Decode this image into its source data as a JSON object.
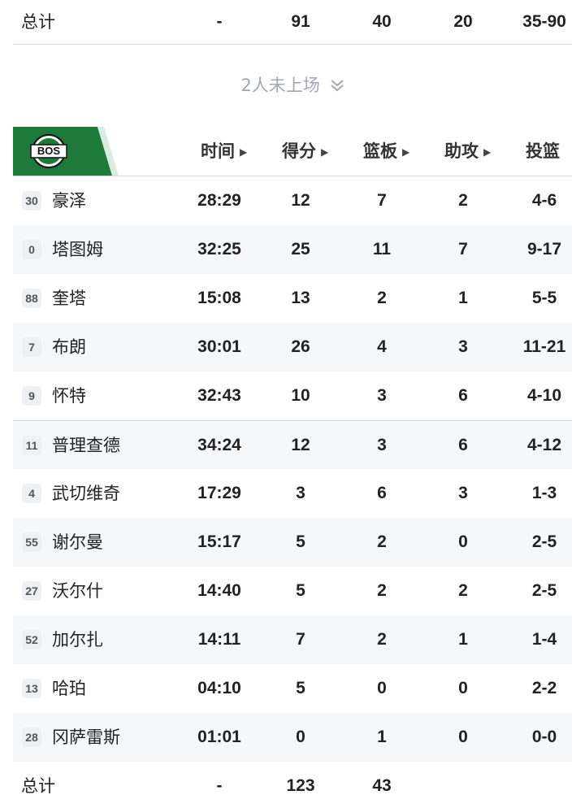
{
  "opponent_total": {
    "label": "总计",
    "time": "-",
    "points": "91",
    "rebounds": "40",
    "assists": "20",
    "fg": "35-90"
  },
  "dnp_notice": {
    "text": "2人未上场",
    "icon": "double-chevron-down-icon"
  },
  "team": {
    "abbr": "BOS",
    "brand_color": "#1d7a3a"
  },
  "columns": {
    "time": "时间",
    "points": "得分",
    "rebounds": "篮板",
    "assists": "助攻",
    "fg": "投篮"
  },
  "players": [
    {
      "number": "30",
      "name": "豪泽",
      "time": "28:29",
      "points": "12",
      "rebounds": "7",
      "assists": "2",
      "fg": "4-6"
    },
    {
      "number": "0",
      "name": "塔图姆",
      "time": "32:25",
      "points": "25",
      "rebounds": "11",
      "assists": "7",
      "fg": "9-17"
    },
    {
      "number": "88",
      "name": "奎塔",
      "time": "15:08",
      "points": "13",
      "rebounds": "2",
      "assists": "1",
      "fg": "5-5"
    },
    {
      "number": "7",
      "name": "布朗",
      "time": "30:01",
      "points": "26",
      "rebounds": "4",
      "assists": "3",
      "fg": "11-21"
    },
    {
      "number": "9",
      "name": "怀特",
      "time": "32:43",
      "points": "10",
      "rebounds": "3",
      "assists": "6",
      "fg": "4-10"
    },
    {
      "number": "11",
      "name": "普理查德",
      "time": "34:24",
      "points": "12",
      "rebounds": "3",
      "assists": "6",
      "fg": "4-12"
    },
    {
      "number": "4",
      "name": "武切维奇",
      "time": "17:29",
      "points": "3",
      "rebounds": "6",
      "assists": "3",
      "fg": "1-3"
    },
    {
      "number": "55",
      "name": "谢尔曼",
      "time": "15:17",
      "points": "5",
      "rebounds": "2",
      "assists": "0",
      "fg": "2-5"
    },
    {
      "number": "27",
      "name": "沃尔什",
      "time": "14:40",
      "points": "5",
      "rebounds": "2",
      "assists": "2",
      "fg": "2-5"
    },
    {
      "number": "52",
      "name": "加尔扎",
      "time": "14:11",
      "points": "7",
      "rebounds": "2",
      "assists": "1",
      "fg": "1-4"
    },
    {
      "number": "13",
      "name": "哈珀",
      "time": "04:10",
      "points": "5",
      "rebounds": "0",
      "assists": "0",
      "fg": "2-2"
    },
    {
      "number": "28",
      "name": "冈萨雷斯",
      "time": "01:01",
      "points": "0",
      "rebounds": "1",
      "assists": "0",
      "fg": "0-0"
    }
  ],
  "team_total": {
    "label": "总计",
    "time": "-",
    "points": "123",
    "rebounds": "43"
  }
}
